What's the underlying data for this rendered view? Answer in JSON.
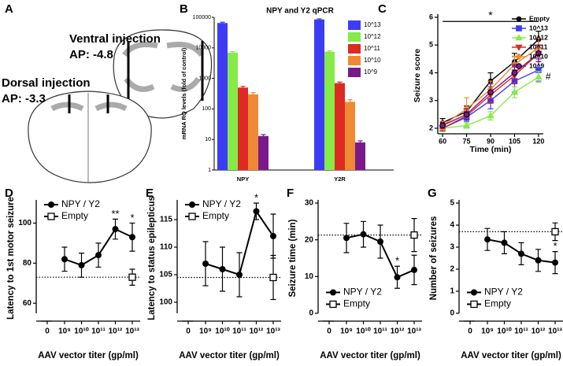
{
  "diagram": {
    "panel": "A",
    "ventral": {
      "title": "Ventral injection",
      "ap": "AP: -4.8"
    },
    "dorsal": {
      "title": "Dorsal injection",
      "ap": "AP: -3.3"
    }
  },
  "chart_data": [
    {
      "panel": "B",
      "type": "bar",
      "title": "NPY and Y2 qPCR",
      "y_label": "mRNA RQ levels (fold of control)",
      "categories": [
        "NPY",
        "Y2R"
      ],
      "log_scale": true,
      "ylim": [
        1,
        100000
      ],
      "yticks": [
        1,
        10,
        100,
        1000,
        10000,
        100000
      ],
      "legend": "upper right",
      "series": [
        {
          "name": "10^13",
          "color": "#3c3cf5",
          "values": [
            65000,
            85000
          ],
          "errors": [
            4000,
            4000
          ]
        },
        {
          "name": "10^12",
          "color": "#86ea48",
          "values": [
            7000,
            7500
          ],
          "errors": [
            500,
            500
          ]
        },
        {
          "name": "10^11",
          "color": "#dd2a22",
          "values": [
            500,
            700
          ],
          "errors": [
            50,
            60
          ]
        },
        {
          "name": "10^10",
          "color": "#ee8a33",
          "values": [
            300,
            170
          ],
          "errors": [
            40,
            30
          ]
        },
        {
          "name": "10^9",
          "color": "#7a1a8a",
          "values": [
            13,
            8
          ],
          "errors": [
            1.5,
            1
          ]
        }
      ]
    },
    {
      "panel": "C",
      "type": "line",
      "x_label": "Time (min)",
      "y_label": "Seizure score",
      "x": [
        60,
        75,
        90,
        105,
        120
      ],
      "xlim": [
        57,
        123
      ],
      "xticks": [
        60,
        75,
        90,
        105,
        120
      ],
      "ylim": [
        1.8,
        6
      ],
      "yticks": [
        2,
        3,
        4,
        5,
        6
      ],
      "legend": "upper right",
      "annotations": [
        {
          "text": "*",
          "x_from": 60,
          "x_to": 120,
          "y": 5.85
        },
        {
          "text": "#",
          "x": 120,
          "y": 3.85
        }
      ],
      "series": [
        {
          "name": "Empty",
          "color": "#000000",
          "marker": "circle",
          "values": [
            2.2,
            2.6,
            3.7,
            4.4,
            5.2
          ],
          "errors": [
            0.15,
            0.2,
            0.3,
            0.3,
            0.3
          ]
        },
        {
          "name": "10^13",
          "color": "#3c3cf5",
          "marker": "square",
          "values": [
            2.0,
            2.4,
            3.0,
            3.7,
            4.1
          ],
          "errors": [
            0.1,
            0.15,
            0.3,
            0.4,
            0.4
          ]
        },
        {
          "name": "10^12",
          "color": "#86ea48",
          "marker": "triangle",
          "values": [
            2.0,
            2.1,
            2.45,
            3.3,
            3.85
          ],
          "errors": [
            0.05,
            0.1,
            0.15,
            0.2,
            0.2
          ]
        },
        {
          "name": "10^11",
          "color": "#dd2a22",
          "marker": "triangle-down",
          "values": [
            2.0,
            2.45,
            3.2,
            3.9,
            4.7
          ],
          "errors": [
            0.1,
            0.15,
            0.3,
            0.3,
            0.3
          ]
        },
        {
          "name": "10^10",
          "color": "#ee8a33",
          "marker": "diamond",
          "values": [
            2.1,
            2.7,
            3.4,
            4.3,
            4.9
          ],
          "errors": [
            0.15,
            0.4,
            0.3,
            0.3,
            0.35
          ]
        },
        {
          "name": "10^9",
          "color": "#7a1a8a",
          "marker": "circle-edged",
          "values": [
            2.1,
            2.5,
            3.3,
            4.0,
            4.7
          ],
          "errors": [
            0.1,
            0.2,
            0.3,
            0.3,
            0.3
          ]
        }
      ]
    },
    {
      "panel": "D",
      "type": "line",
      "x_label": "AAV vector titer (gp/ml)",
      "y_label": "Latency to 1st motor seizure",
      "categories": [
        "0",
        "10⁹",
        "10¹⁰",
        "10¹¹",
        "10¹²",
        "10¹³"
      ],
      "ylim": [
        55,
        110
      ],
      "yticks": [
        60,
        80,
        100
      ],
      "legend": "upper left",
      "annotations": [
        {
          "text": "**",
          "x": "10¹²"
        },
        {
          "text": "*",
          "x": "10¹³"
        }
      ],
      "series": [
        {
          "name": "NPY / Y2",
          "color": "#000000",
          "marker": "circle",
          "values": [
            null,
            82,
            79,
            84,
            97,
            93
          ],
          "errors": [
            null,
            6,
            6,
            6,
            5,
            7
          ]
        },
        {
          "name": "Empty",
          "color": "#000000",
          "marker": "square-open",
          "dotted_reference": true,
          "values": [
            null,
            null,
            null,
            null,
            null,
            73
          ],
          "errors": [
            null,
            null,
            null,
            null,
            null,
            4
          ]
        }
      ]
    },
    {
      "panel": "E",
      "type": "line",
      "x_label": "AAV vector titer (gp/ml)",
      "y_label": "Latency to status epilepticus",
      "categories": [
        "0",
        "10⁹",
        "10¹⁰",
        "10¹¹",
        "10¹²",
        "10¹³"
      ],
      "ylim": [
        98,
        118
      ],
      "yticks": [
        100,
        105,
        110,
        115
      ],
      "legend": "upper left",
      "annotations": [
        {
          "text": "*",
          "x": "10¹²"
        }
      ],
      "series": [
        {
          "name": "NPY / Y2",
          "color": "#000000",
          "marker": "circle",
          "values": [
            null,
            107,
            106,
            105,
            116.5,
            112
          ],
          "errors": [
            null,
            4,
            4,
            4,
            1.5,
            4
          ]
        },
        {
          "name": "Empty",
          "color": "#000000",
          "marker": "square-open",
          "dotted_reference": true,
          "values": [
            null,
            null,
            null,
            null,
            null,
            104.5
          ],
          "errors": [
            null,
            null,
            null,
            null,
            null,
            4
          ]
        }
      ]
    },
    {
      "panel": "F",
      "type": "line",
      "x_label": "AAV vector titer (gp/ml)",
      "y_label": "Seizure time (min)",
      "categories": [
        "0",
        "10⁹",
        "10¹⁰",
        "10¹¹",
        "10¹²",
        "10¹³"
      ],
      "ylim": [
        0,
        30
      ],
      "yticks": [
        0,
        10,
        20,
        30
      ],
      "legend": "lower left",
      "annotations": [
        {
          "text": "*",
          "x": "10¹²"
        }
      ],
      "series": [
        {
          "name": "NPY / Y2",
          "color": "#000000",
          "marker": "circle",
          "values": [
            null,
            20.5,
            21.5,
            19.5,
            9.8,
            11.8
          ],
          "errors": [
            null,
            4,
            3.5,
            4.5,
            3,
            4
          ]
        },
        {
          "name": "Empty",
          "color": "#000000",
          "marker": "square-open",
          "dotted_reference": true,
          "values": [
            null,
            null,
            null,
            null,
            null,
            21.3
          ],
          "errors": [
            null,
            null,
            null,
            null,
            null,
            4.5
          ]
        }
      ]
    },
    {
      "panel": "G",
      "type": "line",
      "x_label": "AAV vector titer (gp/ml)",
      "y_label": "Number of seizures",
      "categories": [
        "0",
        "10⁹",
        "10¹⁰",
        "10¹¹",
        "10¹²",
        "10¹³"
      ],
      "ylim": [
        0,
        5
      ],
      "yticks": [
        0,
        1,
        2,
        3,
        4,
        5
      ],
      "legend": "lower left",
      "annotations": [
        {
          "text": "*",
          "x": "10¹³"
        }
      ],
      "series": [
        {
          "name": "NPY / Y2",
          "color": "#000000",
          "marker": "circle",
          "values": [
            null,
            3.35,
            3.2,
            2.7,
            2.4,
            2.3
          ],
          "errors": [
            null,
            0.5,
            0.5,
            0.5,
            0.5,
            0.5
          ]
        },
        {
          "name": "Empty",
          "color": "#000000",
          "marker": "square-open",
          "dotted_reference": true,
          "values": [
            null,
            null,
            null,
            null,
            null,
            3.7
          ],
          "errors": [
            null,
            null,
            null,
            null,
            null,
            0.4
          ]
        }
      ]
    }
  ]
}
